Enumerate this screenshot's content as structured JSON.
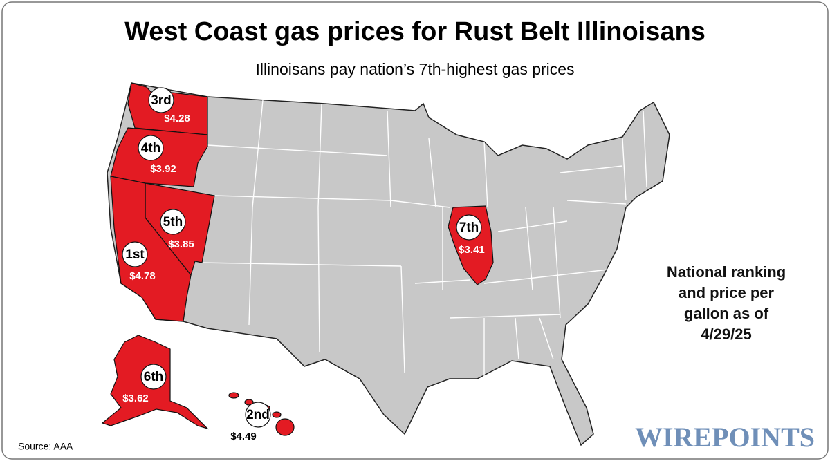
{
  "title": "West Coast gas prices for Rust Belt Illinoisans",
  "subtitle": "Illinoisans pay nation’s 7th-highest gas prices",
  "states": [
    {
      "rank": "3rd",
      "price": "$4.28"
    },
    {
      "rank": "4th",
      "price": "$3.92"
    },
    {
      "rank": "5th",
      "price": "$3.85"
    },
    {
      "rank": "1st",
      "price": "$4.78"
    },
    {
      "rank": "7th",
      "price": "$3.41"
    },
    {
      "rank": "6th",
      "price": "$3.62"
    },
    {
      "rank": "2nd",
      "price": "$4.49"
    }
  ],
  "note": [
    "National ranking",
    "and price per",
    "gallon as of",
    "4/29/25"
  ],
  "source": "Source: AAA",
  "brand": "WIREPOINTS"
}
